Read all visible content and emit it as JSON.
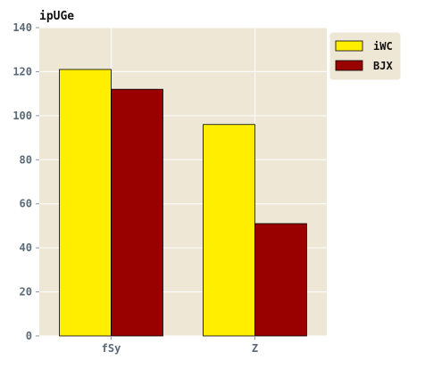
{
  "chart_data": {
    "type": "bar",
    "title": "ipUGe",
    "xlabel": "",
    "ylabel": "",
    "categories": [
      "fSy",
      "Z"
    ],
    "series": [
      {
        "name": "iWC",
        "values": [
          121,
          96
        ],
        "color": "#ffee00"
      },
      {
        "name": "BJX",
        "values": [
          112,
          51
        ],
        "color": "#990000"
      }
    ],
    "ylim": [
      0,
      140
    ],
    "yticks": [
      0,
      20,
      40,
      60,
      80,
      100,
      120,
      140
    ],
    "grid": true,
    "legend_position": "top-right",
    "background_color": "#efe7d6",
    "grid_color": "#ffffff"
  }
}
